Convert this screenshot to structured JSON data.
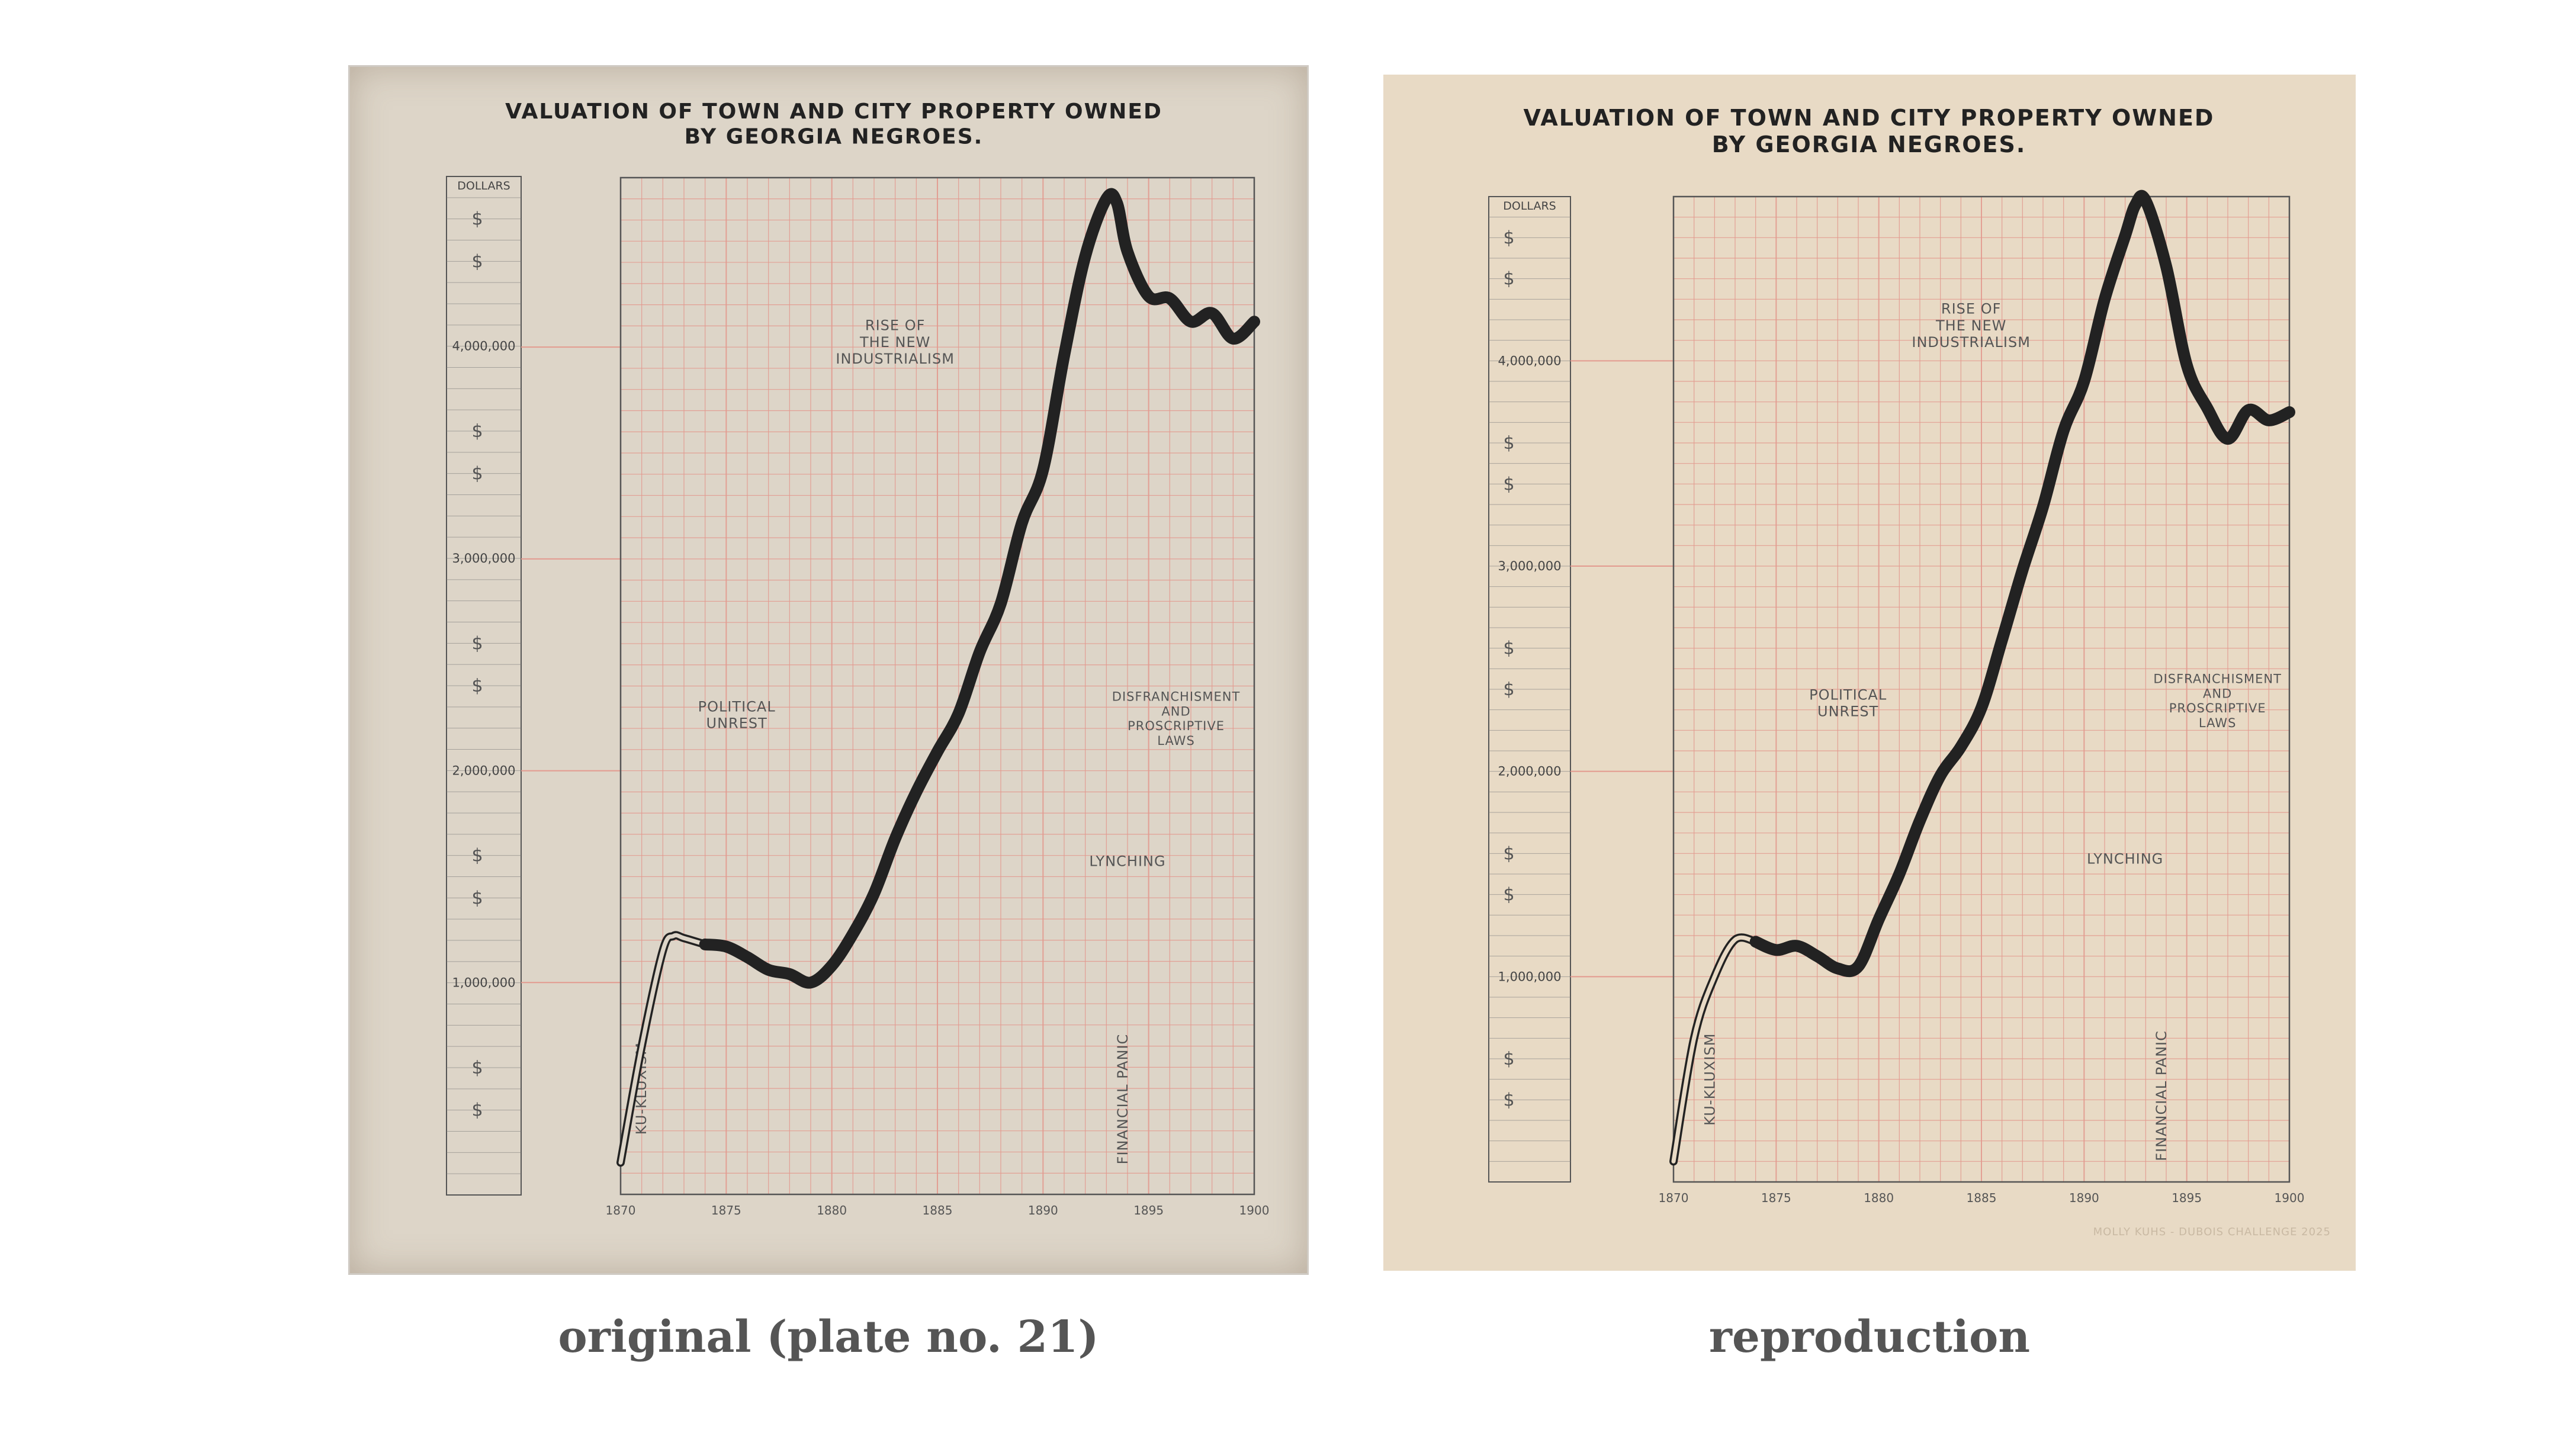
{
  "captions": {
    "left": "original (plate no. 21)",
    "right": "reproduction"
  },
  "colors": {
    "background": "#ffffff",
    "paper_original": "#ddd5c8",
    "paper_reproduction": "#e8dac5",
    "grid": "#e39a8f",
    "ink": "#222222",
    "caption": "#555555"
  },
  "chart_data": [
    {
      "type": "line",
      "title": "VALUATION OF TOWN AND CITY PROPERTY OWNED\nBY GEORGIA NEGROES.",
      "ylabel": "DOLLARS",
      "xlim": [
        1870,
        1900
      ],
      "ylim": [
        0,
        4800000
      ],
      "x_ticks": [
        "1870",
        "1875",
        "1880",
        "1885",
        "1890",
        "1895",
        "1900"
      ],
      "y_ticks": [
        {
          "value": 1000000,
          "label": "1,000,000"
        },
        {
          "value": 2000000,
          "label": "2,000,000"
        },
        {
          "value": 3000000,
          "label": "3,000,000"
        },
        {
          "value": 4000000,
          "label": "4,000,000"
        }
      ],
      "dollar_marks": [
        400000,
        600000,
        1400000,
        1600000,
        2400000,
        2600000,
        3400000,
        3600000,
        4400000,
        4600000
      ],
      "series": [
        {
          "x": [
            1870,
            1871,
            1872,
            1872.5,
            1873,
            1874,
            1875,
            1876,
            1877,
            1878,
            1879,
            1880,
            1881,
            1882,
            1883,
            1884,
            1885,
            1886,
            1887,
            1888,
            1889,
            1890,
            1891,
            1892,
            1893,
            1893.5,
            1894,
            1895,
            1896,
            1897,
            1898,
            1899,
            1900
          ],
          "y": [
            150000,
            700000,
            1150000,
            1220000,
            1210000,
            1180000,
            1170000,
            1120000,
            1060000,
            1040000,
            1000000,
            1080000,
            1230000,
            1420000,
            1680000,
            1900000,
            2090000,
            2270000,
            2560000,
            2790000,
            3170000,
            3420000,
            3960000,
            4430000,
            4700000,
            4680000,
            4450000,
            4240000,
            4230000,
            4120000,
            4160000,
            4040000,
            4120000
          ]
        }
      ],
      "annotations": [
        {
          "text": "KU-KLUXISM",
          "x": 1871.2,
          "y": 500000,
          "rotate": true
        },
        {
          "text": "POLITICAL\nUNREST",
          "x": 1875.5,
          "y": 2280000
        },
        {
          "text": "RISE OF\nTHE NEW\nINDUSTRIALISM",
          "x": 1883,
          "y": 4080000
        },
        {
          "text": "DISFRANCHISMENT\nAND\nPROSCRIPTIVE\nLAWS",
          "x": 1896.3,
          "y": 2330000
        },
        {
          "text": "LYNCHING",
          "x": 1894,
          "y": 1550000
        },
        {
          "text": "FINANCIAL PANIC",
          "x": 1894,
          "y": 450000,
          "rotate": true
        }
      ]
    },
    {
      "type": "line",
      "title": "VALUATION OF TOWN AND CITY PROPERTY OWNED\nBY GEORGIA NEGROES.",
      "ylabel": "DOLLARS",
      "xlim": [
        1870,
        1900
      ],
      "ylim": [
        0,
        4800000
      ],
      "x_ticks": [
        "1870",
        "1875",
        "1880",
        "1885",
        "1890",
        "1895",
        "1900"
      ],
      "y_ticks": [
        {
          "value": 1000000,
          "label": "1,000,000"
        },
        {
          "value": 2000000,
          "label": "2,000,000"
        },
        {
          "value": 3000000,
          "label": "3,000,000"
        },
        {
          "value": 4000000,
          "label": "4,000,000"
        }
      ],
      "dollar_marks": [
        400000,
        600000,
        1400000,
        1600000,
        2400000,
        2600000,
        3400000,
        3600000,
        4400000,
        4600000
      ],
      "series": [
        {
          "x": [
            1870,
            1871,
            1872,
            1873,
            1874,
            1875,
            1876,
            1877,
            1878,
            1879,
            1880,
            1881,
            1882,
            1883,
            1884,
            1885,
            1886,
            1887,
            1888,
            1889,
            1890,
            1891,
            1892,
            1892.5,
            1893,
            1894,
            1895,
            1896,
            1897,
            1898,
            1899,
            1900
          ],
          "y": [
            100000,
            700000,
            1000000,
            1180000,
            1170000,
            1130000,
            1150000,
            1100000,
            1040000,
            1050000,
            1280000,
            1500000,
            1760000,
            1980000,
            2120000,
            2310000,
            2640000,
            2980000,
            3290000,
            3660000,
            3900000,
            4300000,
            4610000,
            4760000,
            4780000,
            4460000,
            3980000,
            3770000,
            3620000,
            3760000,
            3710000,
            3750000
          ]
        }
      ],
      "annotations": [
        {
          "text": "KU-KLUXISM",
          "x": 1872,
          "y": 500000,
          "rotate": true
        },
        {
          "text": "POLITICAL\nUNREST",
          "x": 1878.5,
          "y": 2350000
        },
        {
          "text": "RISE OF\nTHE NEW\nINDUSTRIALISM",
          "x": 1884.5,
          "y": 4230000
        },
        {
          "text": "DISFRANCHISMENT\nAND\nPROSCRIPTIVE\nLAWS",
          "x": 1896.5,
          "y": 2430000
        },
        {
          "text": "LYNCHING",
          "x": 1892,
          "y": 1550000
        },
        {
          "text": "FINANCIAL PANIC",
          "x": 1894,
          "y": 420000,
          "rotate": true
        }
      ],
      "credit": "MOLLY KUHS - DUBOIS CHALLENGE 2025"
    }
  ]
}
